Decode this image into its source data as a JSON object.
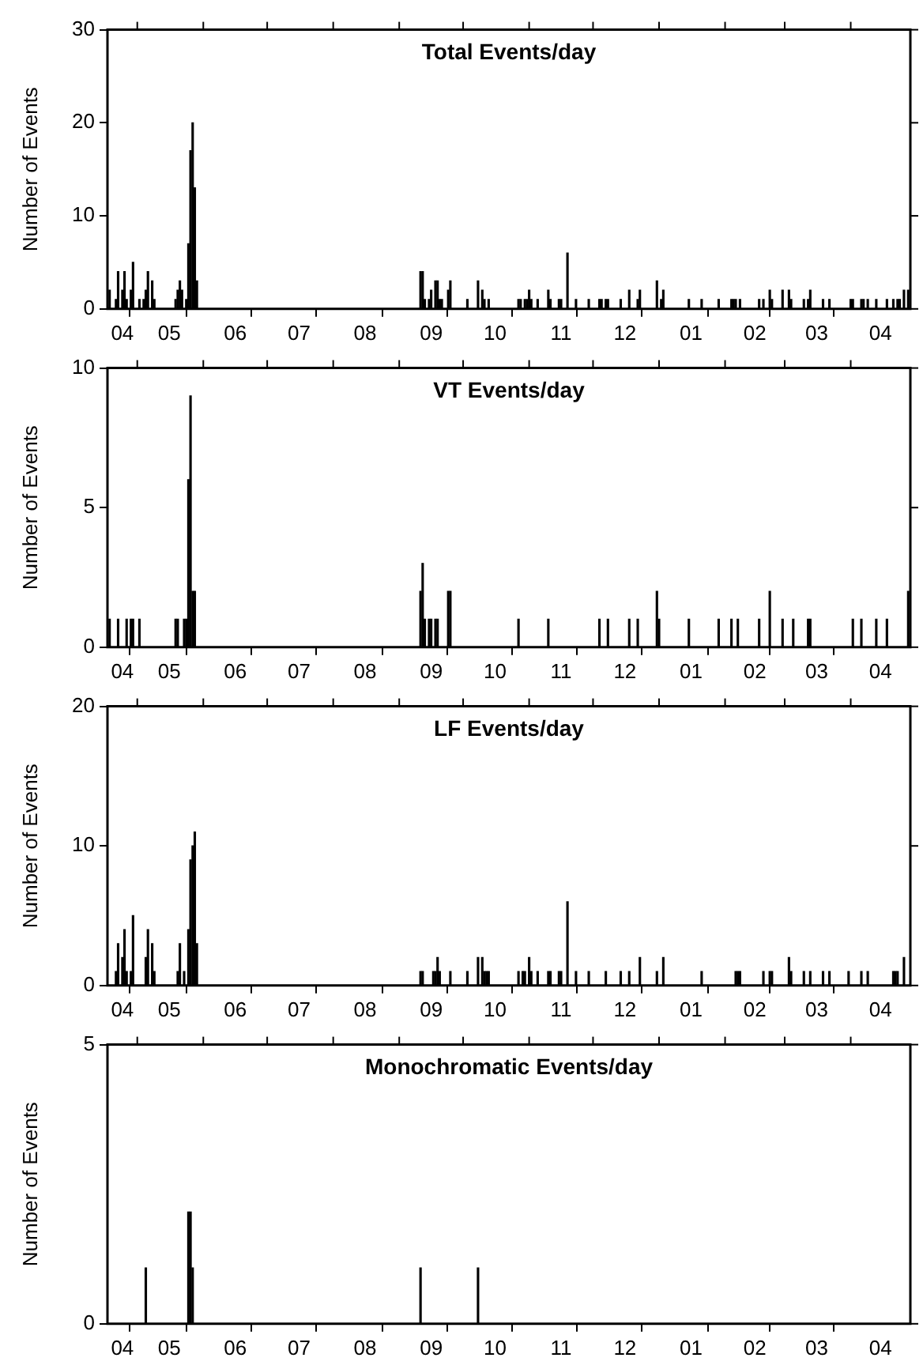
{
  "chart_data": [
    {
      "type": "bar",
      "title": "Total Events/day",
      "ylabel": "Number of Events",
      "color": "#000000",
      "xlim": [
        "2001-04-17",
        "2002-04-29"
      ],
      "ylim": [
        0,
        30
      ],
      "yticks": [
        0,
        10,
        20,
        30
      ],
      "xticks": [
        {
          "value": "2001-04-24",
          "label": "04"
        },
        {
          "value": "2001-05-01",
          "label": null
        },
        {
          "value": "2001-05-16",
          "label": "05"
        },
        {
          "value": "2001-06-01",
          "label": null
        },
        {
          "value": "2001-06-16",
          "label": "06"
        },
        {
          "value": "2001-07-01",
          "label": null
        },
        {
          "value": "2001-07-16",
          "label": "07"
        },
        {
          "value": "2001-08-01",
          "label": null
        },
        {
          "value": "2001-08-16",
          "label": "08"
        },
        {
          "value": "2001-09-01",
          "label": null
        },
        {
          "value": "2001-09-16",
          "label": "09"
        },
        {
          "value": "2001-10-01",
          "label": null
        },
        {
          "value": "2001-10-16",
          "label": "10"
        },
        {
          "value": "2001-11-01",
          "label": null
        },
        {
          "value": "2001-11-16",
          "label": "11"
        },
        {
          "value": "2001-12-01",
          "label": null
        },
        {
          "value": "2001-12-16",
          "label": "12"
        },
        {
          "value": "2002-01-01",
          "label": null
        },
        {
          "value": "2002-01-16",
          "label": "01"
        },
        {
          "value": "2002-02-01",
          "label": null
        },
        {
          "value": "2002-02-15",
          "label": "02"
        },
        {
          "value": "2002-03-01",
          "label": null
        },
        {
          "value": "2002-03-16",
          "label": "03"
        },
        {
          "value": "2002-04-01",
          "label": null
        },
        {
          "value": "2002-04-15",
          "label": "04"
        }
      ],
      "x": [
        "2001-04-18",
        "2001-04-21",
        "2001-04-22",
        "2001-04-24",
        "2001-04-25",
        "2001-04-26",
        "2001-04-28",
        "2001-04-29",
        "2001-05-02",
        "2001-05-04",
        "2001-05-05",
        "2001-05-06",
        "2001-05-08",
        "2001-05-09",
        "2001-05-19",
        "2001-05-20",
        "2001-05-21",
        "2001-05-22",
        "2001-05-24",
        "2001-05-25",
        "2001-05-26",
        "2001-05-27",
        "2001-05-28",
        "2001-05-29",
        "2001-09-11",
        "2001-09-12",
        "2001-09-13",
        "2001-09-15",
        "2001-09-16",
        "2001-09-18",
        "2001-09-19",
        "2001-09-20",
        "2001-09-21",
        "2001-09-24",
        "2001-09-25",
        "2001-10-03",
        "2001-10-08",
        "2001-10-10",
        "2001-10-11",
        "2001-10-13",
        "2001-10-27",
        "2001-10-28",
        "2001-10-30",
        "2001-10-31",
        "2001-11-01",
        "2001-11-02",
        "2001-11-05",
        "2001-11-10",
        "2001-11-11",
        "2001-11-15",
        "2001-11-16",
        "2001-11-19",
        "2001-11-23",
        "2001-11-29",
        "2001-12-04",
        "2001-12-05",
        "2001-12-07",
        "2001-12-08",
        "2001-12-14",
        "2001-12-18",
        "2001-12-22",
        "2001-12-23",
        "2001-12-31",
        "2002-01-02",
        "2002-01-03",
        "2002-01-15",
        "2002-01-21",
        "2002-01-29",
        "2002-02-04",
        "2002-02-05",
        "2002-02-06",
        "2002-02-08",
        "2002-02-17",
        "2002-02-19",
        "2002-02-22",
        "2002-02-23",
        "2002-02-28",
        "2002-03-03",
        "2002-03-04",
        "2002-03-10",
        "2002-03-12",
        "2002-03-13",
        "2002-03-19",
        "2002-03-22",
        "2002-04-01",
        "2002-04-02",
        "2002-04-06",
        "2002-04-07",
        "2002-04-09",
        "2002-04-13",
        "2002-04-18",
        "2002-04-21",
        "2002-04-23",
        "2002-04-24",
        "2002-04-26",
        "2002-04-28"
      ],
      "values": [
        2,
        1,
        4,
        2,
        4,
        1,
        2,
        5,
        1,
        1,
        2,
        4,
        3,
        1,
        1,
        2,
        3,
        2,
        1,
        7,
        17,
        20,
        13,
        3,
        4,
        4,
        1,
        1,
        2,
        3,
        3,
        1,
        1,
        2,
        3,
        1,
        3,
        2,
        1,
        1,
        1,
        1,
        1,
        1,
        2,
        1,
        1,
        2,
        1,
        1,
        1,
        6,
        1,
        1,
        1,
        1,
        1,
        1,
        1,
        2,
        1,
        2,
        3,
        1,
        2,
        1,
        1,
        1,
        1,
        1,
        1,
        1,
        1,
        1,
        2,
        1,
        2,
        2,
        1,
        1,
        1,
        2,
        1,
        1,
        1,
        1,
        1,
        1,
        1,
        1,
        1,
        1,
        1,
        1,
        2,
        2
      ]
    },
    {
      "type": "bar",
      "title": "VT Events/day",
      "ylabel": "Number of Events",
      "color": "#000000",
      "xlim": [
        "2001-04-17",
        "2002-04-29"
      ],
      "ylim": [
        0,
        10
      ],
      "yticks": [
        0,
        5,
        10
      ],
      "xticks": [
        {
          "value": "2001-04-24",
          "label": "04"
        },
        {
          "value": "2001-05-01",
          "label": null
        },
        {
          "value": "2001-05-16",
          "label": "05"
        },
        {
          "value": "2001-06-01",
          "label": null
        },
        {
          "value": "2001-06-16",
          "label": "06"
        },
        {
          "value": "2001-07-01",
          "label": null
        },
        {
          "value": "2001-07-16",
          "label": "07"
        },
        {
          "value": "2001-08-01",
          "label": null
        },
        {
          "value": "2001-08-16",
          "label": "08"
        },
        {
          "value": "2001-09-01",
          "label": null
        },
        {
          "value": "2001-09-16",
          "label": "09"
        },
        {
          "value": "2001-10-01",
          "label": null
        },
        {
          "value": "2001-10-16",
          "label": "10"
        },
        {
          "value": "2001-11-01",
          "label": null
        },
        {
          "value": "2001-11-16",
          "label": "11"
        },
        {
          "value": "2001-12-01",
          "label": null
        },
        {
          "value": "2001-12-16",
          "label": "12"
        },
        {
          "value": "2002-01-01",
          "label": null
        },
        {
          "value": "2002-01-16",
          "label": "01"
        },
        {
          "value": "2002-02-01",
          "label": null
        },
        {
          "value": "2002-02-15",
          "label": "02"
        },
        {
          "value": "2002-03-01",
          "label": null
        },
        {
          "value": "2002-03-16",
          "label": "03"
        },
        {
          "value": "2002-04-01",
          "label": null
        },
        {
          "value": "2002-04-15",
          "label": "04"
        }
      ],
      "x": [
        "2001-04-18",
        "2001-04-22",
        "2001-04-26",
        "2001-04-28",
        "2001-04-29",
        "2001-05-02",
        "2001-05-19",
        "2001-05-20",
        "2001-05-23",
        "2001-05-24",
        "2001-05-25",
        "2001-05-26",
        "2001-05-27",
        "2001-05-28",
        "2001-09-11",
        "2001-09-12",
        "2001-09-13",
        "2001-09-15",
        "2001-09-16",
        "2001-09-18",
        "2001-09-19",
        "2001-09-24",
        "2001-09-25",
        "2001-10-27",
        "2001-11-10",
        "2001-12-04",
        "2001-12-08",
        "2001-12-18",
        "2001-12-22",
        "2001-12-31",
        "2002-01-01",
        "2002-01-15",
        "2002-01-29",
        "2002-02-04",
        "2002-02-07",
        "2002-02-17",
        "2002-02-22",
        "2002-02-28",
        "2002-03-05",
        "2002-03-12",
        "2002-03-13",
        "2002-04-02",
        "2002-04-06",
        "2002-04-13",
        "2002-04-18",
        "2002-04-28"
      ],
      "values": [
        1,
        1,
        1,
        1,
        1,
        1,
        1,
        1,
        1,
        1,
        6,
        9,
        2,
        2,
        2,
        3,
        1,
        1,
        1,
        1,
        1,
        2,
        2,
        1,
        1,
        1,
        1,
        1,
        1,
        2,
        1,
        1,
        1,
        1,
        1,
        1,
        2,
        1,
        1,
        1,
        1,
        1,
        1,
        1,
        1,
        2
      ]
    },
    {
      "type": "bar",
      "title": "LF Events/day",
      "ylabel": "Number of Events",
      "color": "#000000",
      "xlim": [
        "2001-04-17",
        "2002-04-29"
      ],
      "ylim": [
        0,
        20
      ],
      "yticks": [
        0,
        10,
        20
      ],
      "xticks": [
        {
          "value": "2001-04-24",
          "label": "04"
        },
        {
          "value": "2001-05-01",
          "label": null
        },
        {
          "value": "2001-05-16",
          "label": "05"
        },
        {
          "value": "2001-06-01",
          "label": null
        },
        {
          "value": "2001-06-16",
          "label": "06"
        },
        {
          "value": "2001-07-01",
          "label": null
        },
        {
          "value": "2001-07-16",
          "label": "07"
        },
        {
          "value": "2001-08-01",
          "label": null
        },
        {
          "value": "2001-08-16",
          "label": "08"
        },
        {
          "value": "2001-09-01",
          "label": null
        },
        {
          "value": "2001-09-16",
          "label": "09"
        },
        {
          "value": "2001-10-01",
          "label": null
        },
        {
          "value": "2001-10-16",
          "label": "10"
        },
        {
          "value": "2001-11-01",
          "label": null
        },
        {
          "value": "2001-11-16",
          "label": "11"
        },
        {
          "value": "2001-12-01",
          "label": null
        },
        {
          "value": "2001-12-16",
          "label": "12"
        },
        {
          "value": "2002-01-01",
          "label": null
        },
        {
          "value": "2002-01-16",
          "label": "01"
        },
        {
          "value": "2002-02-01",
          "label": null
        },
        {
          "value": "2002-02-15",
          "label": "02"
        },
        {
          "value": "2002-03-01",
          "label": null
        },
        {
          "value": "2002-03-16",
          "label": "03"
        },
        {
          "value": "2002-04-01",
          "label": null
        },
        {
          "value": "2002-04-15",
          "label": "04"
        }
      ],
      "x": [
        "2001-04-21",
        "2001-04-22",
        "2001-04-24",
        "2001-04-25",
        "2001-04-26",
        "2001-04-28",
        "2001-04-29",
        "2001-05-05",
        "2001-05-06",
        "2001-05-08",
        "2001-05-09",
        "2001-05-20",
        "2001-05-21",
        "2001-05-23",
        "2001-05-25",
        "2001-05-26",
        "2001-05-27",
        "2001-05-28",
        "2001-05-29",
        "2001-09-11",
        "2001-09-12",
        "2001-09-17",
        "2001-09-18",
        "2001-09-19",
        "2001-09-20",
        "2001-09-25",
        "2001-10-03",
        "2001-10-08",
        "2001-10-10",
        "2001-10-11",
        "2001-10-12",
        "2001-10-13",
        "2001-10-27",
        "2001-10-29",
        "2001-10-30",
        "2001-11-01",
        "2001-11-02",
        "2001-11-05",
        "2001-11-10",
        "2001-11-11",
        "2001-11-15",
        "2001-11-16",
        "2001-11-19",
        "2001-11-23",
        "2001-11-29",
        "2001-12-07",
        "2001-12-14",
        "2001-12-18",
        "2001-12-23",
        "2001-12-31",
        "2002-01-03",
        "2002-01-21",
        "2002-02-06",
        "2002-02-07",
        "2002-02-08",
        "2002-02-19",
        "2002-02-22",
        "2002-02-23",
        "2002-03-03",
        "2002-03-04",
        "2002-03-10",
        "2002-03-13",
        "2002-03-19",
        "2002-03-22",
        "2002-03-31",
        "2002-04-06",
        "2002-04-09",
        "2002-04-21",
        "2002-04-22",
        "2002-04-23",
        "2002-04-26"
      ],
      "values": [
        1,
        3,
        2,
        4,
        1,
        1,
        5,
        2,
        4,
        3,
        1,
        1,
        3,
        1,
        4,
        9,
        10,
        11,
        3,
        1,
        1,
        1,
        1,
        2,
        1,
        1,
        1,
        2,
        2,
        1,
        1,
        1,
        1,
        1,
        1,
        2,
        1,
        1,
        1,
        1,
        1,
        1,
        6,
        1,
        1,
        1,
        1,
        1,
        2,
        1,
        2,
        1,
        1,
        1,
        1,
        1,
        1,
        1,
        2,
        1,
        1,
        1,
        1,
        1,
        1,
        1,
        1,
        1,
        1,
        1,
        2
      ]
    },
    {
      "type": "bar",
      "title": "Monochromatic Events/day",
      "ylabel": "Number of Events",
      "color": "#000000",
      "xlim": [
        "2001-04-17",
        "2002-04-29"
      ],
      "ylim": [
        0,
        5
      ],
      "yticks": [
        0,
        5
      ],
      "xticks": [
        {
          "value": "2001-04-24",
          "label": "04"
        },
        {
          "value": "2001-05-01",
          "label": null
        },
        {
          "value": "2001-05-16",
          "label": "05"
        },
        {
          "value": "2001-06-01",
          "label": null
        },
        {
          "value": "2001-06-16",
          "label": "06"
        },
        {
          "value": "2001-07-01",
          "label": null
        },
        {
          "value": "2001-07-16",
          "label": "07"
        },
        {
          "value": "2001-08-01",
          "label": null
        },
        {
          "value": "2001-08-16",
          "label": "08"
        },
        {
          "value": "2001-09-01",
          "label": null
        },
        {
          "value": "2001-09-16",
          "label": "09"
        },
        {
          "value": "2001-10-01",
          "label": null
        },
        {
          "value": "2001-10-16",
          "label": "10"
        },
        {
          "value": "2001-11-01",
          "label": null
        },
        {
          "value": "2001-11-16",
          "label": "11"
        },
        {
          "value": "2001-12-01",
          "label": null
        },
        {
          "value": "2001-12-16",
          "label": "12"
        },
        {
          "value": "2002-01-01",
          "label": null
        },
        {
          "value": "2002-01-16",
          "label": "01"
        },
        {
          "value": "2002-02-01",
          "label": null
        },
        {
          "value": "2002-02-15",
          "label": "02"
        },
        {
          "value": "2002-03-01",
          "label": null
        },
        {
          "value": "2002-03-16",
          "label": "03"
        },
        {
          "value": "2002-04-01",
          "label": null
        },
        {
          "value": "2002-04-15",
          "label": "04"
        }
      ],
      "x": [
        "2001-05-05",
        "2001-05-25",
        "2001-05-26",
        "2001-05-27",
        "2001-09-11",
        "2001-10-08"
      ],
      "values": [
        1,
        2,
        2,
        1,
        1,
        1
      ]
    }
  ]
}
